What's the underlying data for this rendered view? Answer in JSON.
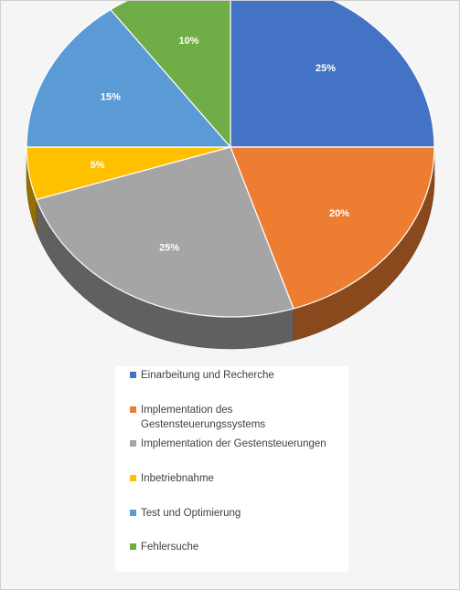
{
  "chart_data": {
    "type": "pie",
    "style": "3d",
    "title": "",
    "slices": [
      {
        "label": "Einarbeitung und Recherche",
        "value": 25,
        "data_label": "25%",
        "color": "#4472c4"
      },
      {
        "label": "Implementation des Gestensteuerungssystems",
        "value": 20,
        "data_label": "20%",
        "color": "#ed7d31"
      },
      {
        "label": "Implementation der Gestensteuerungen",
        "value": 25,
        "data_label": "25%",
        "color": "#a5a5a5"
      },
      {
        "label": "Inbetriebnahme",
        "value": 5,
        "data_label": "5%",
        "color": "#ffc000"
      },
      {
        "label": "Test und Optimierung",
        "value": 15,
        "data_label": "15%",
        "color": "#5b9bd5"
      },
      {
        "label": "Fehlersuche",
        "value": 10,
        "data_label": "10%",
        "color": "#70ad47"
      }
    ],
    "legend": {
      "position": "bottom"
    }
  }
}
